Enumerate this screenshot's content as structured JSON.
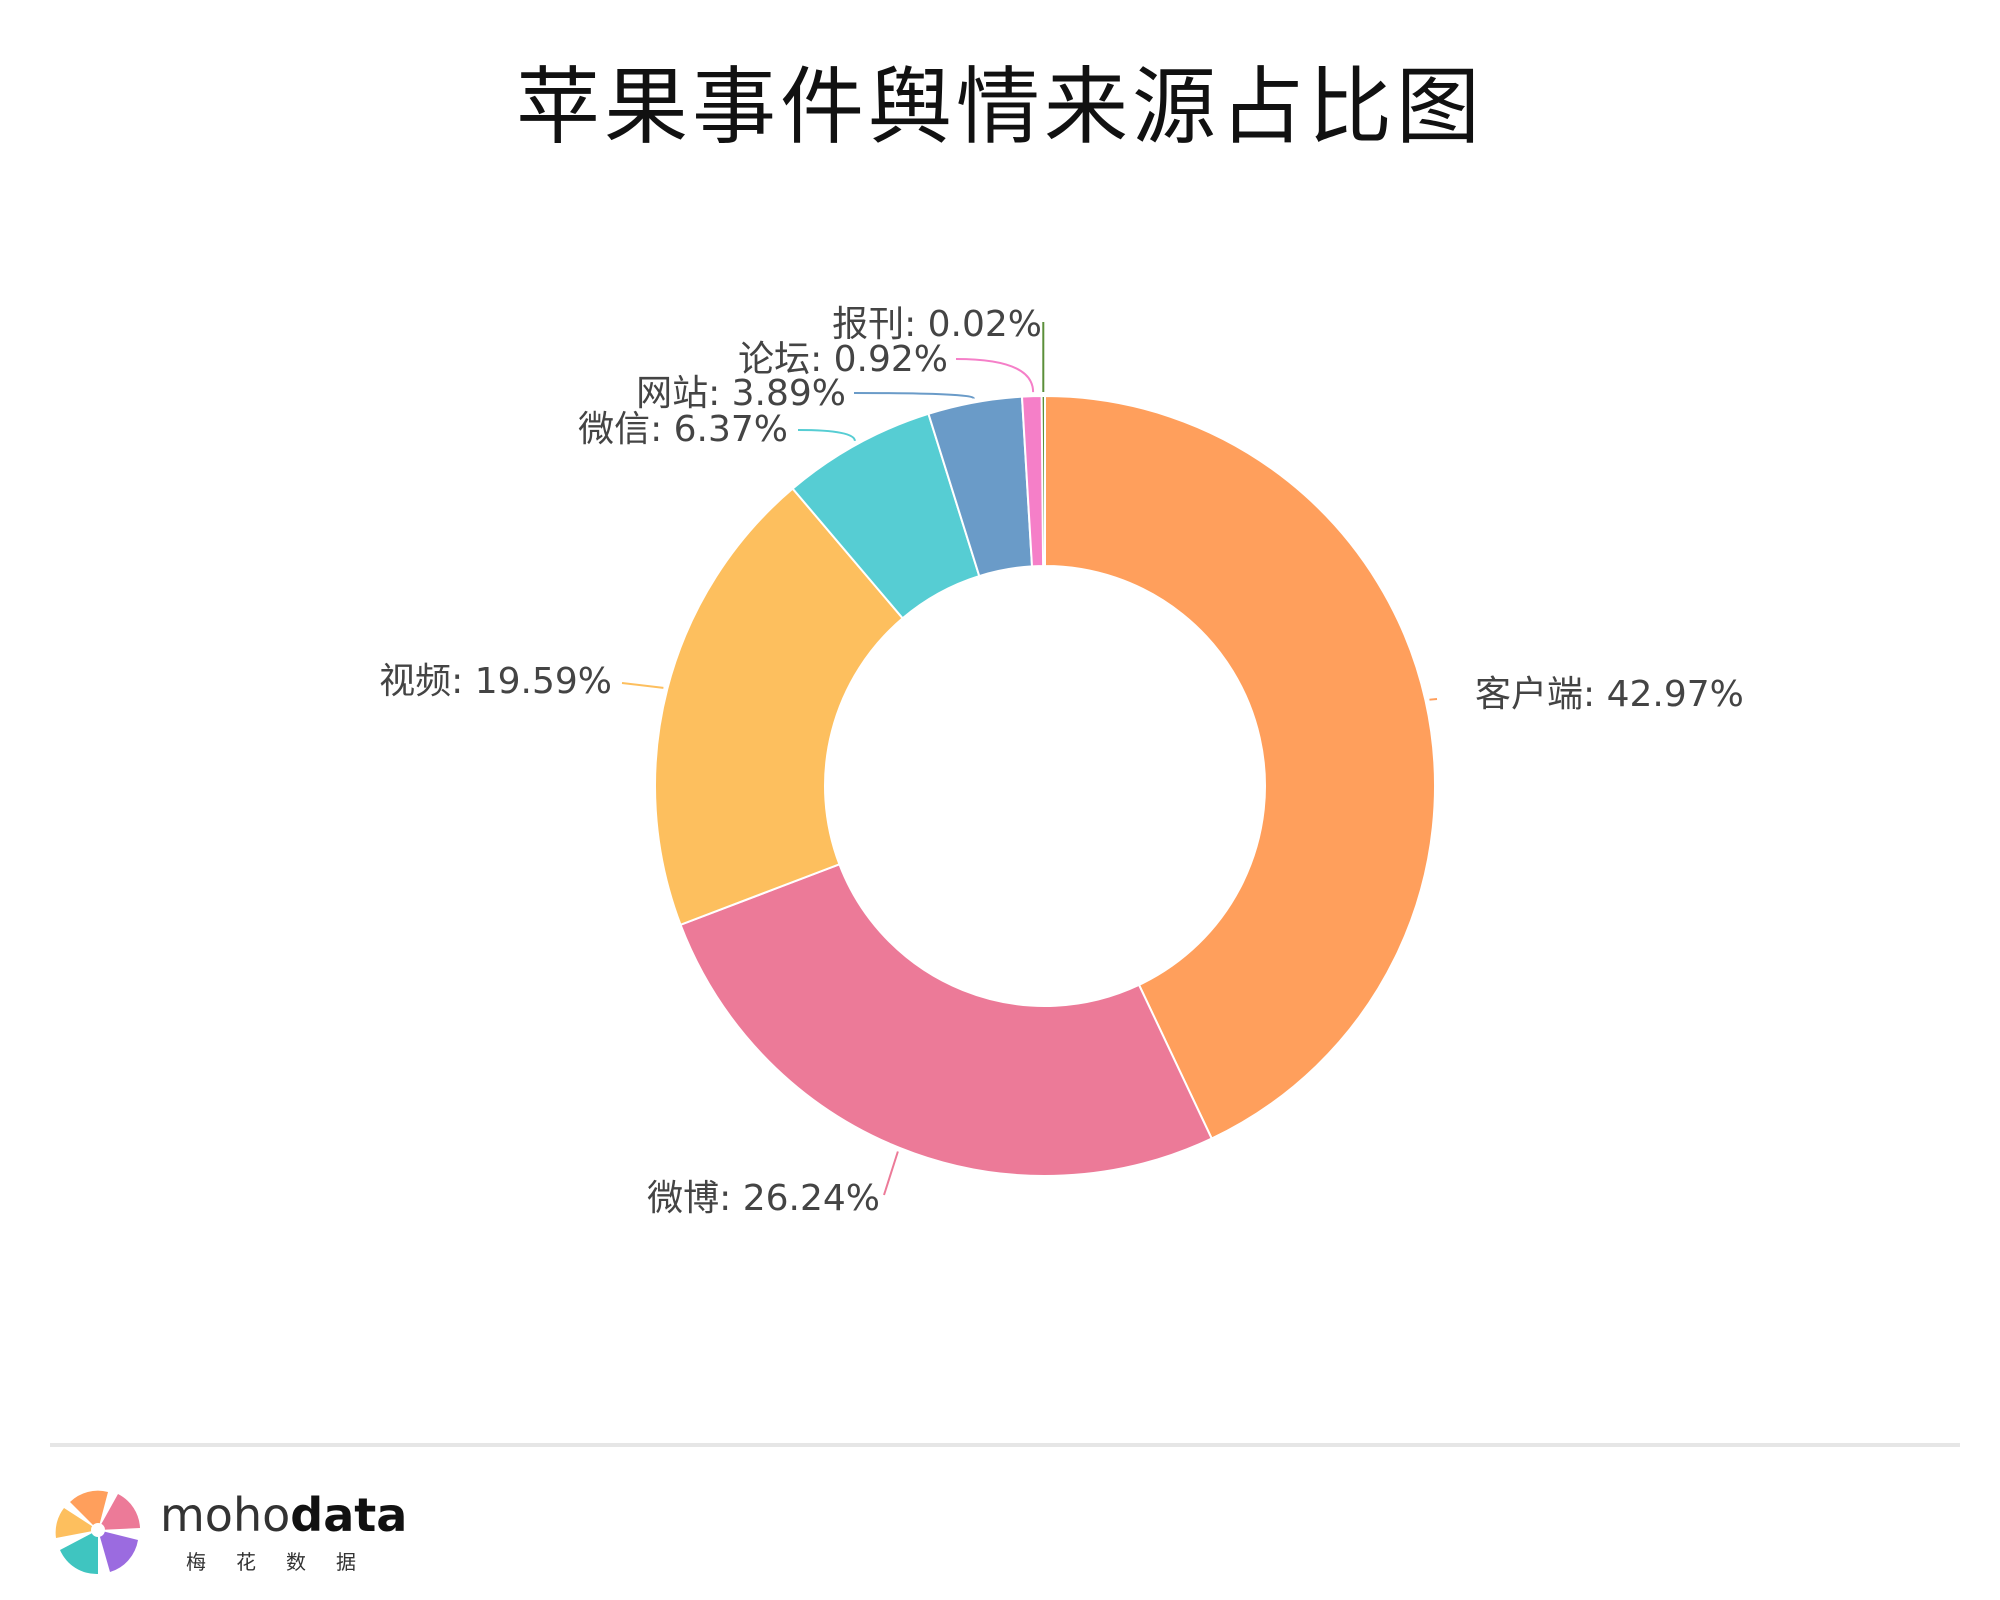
{
  "chart_data": {
    "type": "pie",
    "title": "苹果事件舆情来源占比图",
    "donut": true,
    "start": "top, clockwise",
    "slices": [
      {
        "label": "客户端",
        "value": 42.97,
        "text": "客户端: 42.97%",
        "color": "#FF9F5C"
      },
      {
        "label": "微博",
        "value": 26.24,
        "text": "微博: 26.24%",
        "color": "#EC7A98"
      },
      {
        "label": "视频",
        "value": 19.59,
        "text": "视频: 19.59%",
        "color": "#FDBF5E"
      },
      {
        "label": "微信",
        "value": 6.37,
        "text": "微信: 6.37%",
        "color": "#56CDD3"
      },
      {
        "label": "网站",
        "value": 3.89,
        "text": "网站: 3.89%",
        "color": "#6A9BC8"
      },
      {
        "label": "论坛",
        "value": 0.92,
        "text": "论坛: 0.92%",
        "color": "#F57FC8"
      },
      {
        "label": "报刊",
        "value": 0.02,
        "text": "报刊: 0.02%",
        "color": "#5B8F3A"
      }
    ]
  },
  "brand": {
    "word_light": "moho",
    "word_bold": "data",
    "subtitle": "梅花数据",
    "logo_colors": [
      "#FF9F5C",
      "#EC7A98",
      "#9B6BE0",
      "#3FC5C0",
      "#FDBF5E"
    ]
  }
}
